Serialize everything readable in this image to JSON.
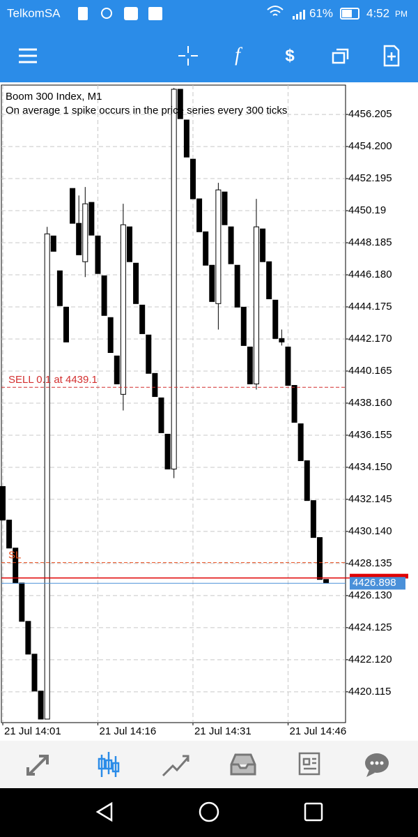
{
  "status_bar": {
    "carrier": "TelkomSA",
    "battery": "61%",
    "time": "4:52",
    "ampm": "PM"
  },
  "chart_data": {
    "type": "candlestick",
    "title": "Boom 300 Index, M1",
    "subtitle": "On average 1 spike occurs in the price series every 300 ticks",
    "open": [
      4432.95,
      4430.85,
      4429.1,
      4426.92,
      4424.52,
      4422.47,
      4420.16,
      4418.41,
      4448.61,
      4446.43,
      4444.16,
      4451.58,
      4449.4,
      4447.0,
      4450.71,
      4448.61,
      4446.12,
      4443.51,
      4441.11,
      4438.71,
      4449.18,
      4446.91,
      4444.29,
      4442.42,
      4440.02,
      4438.49,
      4436.22,
      4434.04,
      4457.78,
      4455.86,
      4453.41,
      4450.93,
      4448.87,
      4446.78,
      4444.38,
      4451.36,
      4449.18,
      4446.78,
      4444.16,
      4441.67,
      4439.36,
      4449.05,
      4447.0,
      4444.6,
      4442.2,
      4441.67,
      4439.27,
      4436.87,
      4434.56,
      4432.07,
      4429.76,
      4427.14
    ],
    "high": [
      4432.95,
      4430.85,
      4429.1,
      4426.92,
      4424.52,
      4422.47,
      4420.16,
      4449.18,
      4448.61,
      4446.43,
      4444.16,
      4451.58,
      4451.14,
      4451.67,
      4450.71,
      4448.61,
      4446.12,
      4443.51,
      4441.11,
      4450.62,
      4449.18,
      4446.91,
      4444.29,
      4442.42,
      4440.02,
      4438.49,
      4436.22,
      4457.86,
      4457.78,
      4455.86,
      4453.41,
      4450.93,
      4448.87,
      4446.78,
      4451.93,
      4451.36,
      4449.18,
      4446.78,
      4444.16,
      4441.67,
      4450.93,
      4449.05,
      4447.0,
      4444.6,
      4442.76,
      4441.67,
      4439.27,
      4436.87,
      4434.56,
      4432.07,
      4429.76,
      4427.14
    ],
    "low": [
      4430.85,
      4429.1,
      4426.92,
      4424.52,
      4422.47,
      4420.16,
      4418.41,
      4418.41,
      4447.65,
      4444.25,
      4441.98,
      4449.4,
      4447.43,
      4446.04,
      4448.66,
      4446.26,
      4443.64,
      4441.32,
      4439.36,
      4437.7,
      4447.0,
      4444.38,
      4442.5,
      4440.02,
      4438.57,
      4436.31,
      4434.04,
      4433.47,
      4455.94,
      4453.54,
      4450.93,
      4448.87,
      4446.78,
      4444.51,
      4442.76,
      4449.31,
      4446.87,
      4444.16,
      4441.76,
      4439.36,
      4439.01,
      4447.0,
      4444.68,
      4442.2,
      4441.76,
      4439.27,
      4436.96,
      4434.56,
      4432.07,
      4429.76,
      4427.14,
      4426.92
    ],
    "close": [
      4430.85,
      4429.1,
      4426.92,
      4424.52,
      4422.47,
      4420.16,
      4418.41,
      4448.74,
      4447.65,
      4444.25,
      4441.98,
      4449.4,
      4447.43,
      4450.62,
      4448.66,
      4446.26,
      4443.64,
      4441.32,
      4439.36,
      4449.31,
      4447.0,
      4444.38,
      4442.5,
      4440.02,
      4438.57,
      4436.31,
      4434.04,
      4457.78,
      4455.94,
      4453.54,
      4450.93,
      4448.87,
      4446.78,
      4444.51,
      4451.49,
      4449.31,
      4446.87,
      4444.16,
      4441.76,
      4439.36,
      4449.18,
      4447.0,
      4444.68,
      4442.2,
      4441.98,
      4439.27,
      4436.96,
      4434.56,
      4432.07,
      4429.76,
      4427.14,
      4426.92
    ],
    "up_color": "#ffffff",
    "down_color": "#000000",
    "xlim": [
      -0.22,
      54.07
    ],
    "xticks": [
      {
        "value": 0,
        "label": "21 Jul 14:01"
      },
      {
        "value": 15,
        "label": "21 Jul 14:16"
      },
      {
        "value": 30,
        "label": "21 Jul 14:31"
      },
      {
        "value": 45,
        "label": "21 Jul 14:46"
      }
    ],
    "ylim": [
      4418.19,
      4458.04
    ],
    "yticks": [
      4456.205,
      {
        "value": 4454.2,
        "label": "4454.200"
      },
      4452.195,
      4450.19,
      4448.185,
      {
        "value": 4446.18,
        "label": "4446.180"
      },
      4444.175,
      {
        "value": 4442.17,
        "label": "4442.170"
      },
      4440.165,
      {
        "value": 4438.16,
        "label": "4438.160"
      },
      4436.155,
      {
        "value": 4434.15,
        "label": "4434.150"
      },
      4432.145,
      {
        "value": 4430.14,
        "label": "4430.140"
      },
      4428.135,
      {
        "value": 4426.13,
        "label": "4426.130"
      },
      4424.125,
      {
        "value": 4422.12,
        "label": "4422.120"
      },
      4420.115
    ],
    "grid": true,
    "lines": [
      {
        "label": "SELL 0.1 at 4439.1",
        "value": 4439.15,
        "color": "#d32f2f"
      },
      {
        "label": "SL",
        "value": 4428.19,
        "color": "#e64a19"
      }
    ],
    "bid_line": {
      "value": 4427.23,
      "color": "#e00000"
    },
    "ask_line": {
      "value": 4426.898,
      "color": "#4a90d9"
    }
  }
}
